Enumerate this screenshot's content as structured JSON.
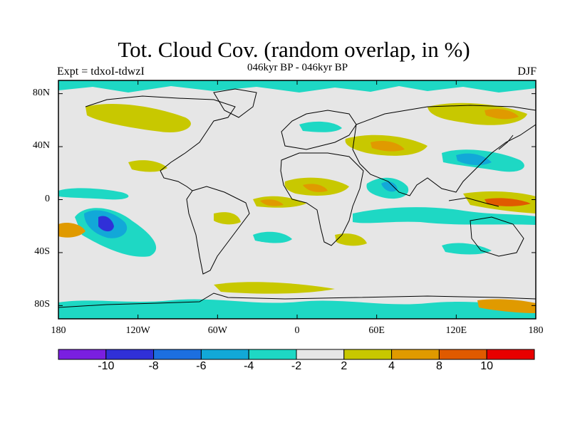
{
  "title": "Tot. Cloud Cov. (random overlap, in %)",
  "subtitle": "046kyr BP - 046kyr BP",
  "experiment": "Expt = tdxoI-tdwzI",
  "season": "DJF",
  "axes": {
    "lat_labels": [
      "80N",
      "40N",
      "0",
      "40S",
      "80S"
    ],
    "lat_values": [
      80,
      40,
      0,
      -40,
      -80
    ],
    "lon_labels": [
      "180",
      "120W",
      "60W",
      "0",
      "60E",
      "120E",
      "180"
    ],
    "lon_values": [
      -180,
      -120,
      -60,
      0,
      60,
      120,
      180
    ],
    "lat_range": [
      -90,
      90
    ],
    "lon_range": [
      -180,
      180
    ]
  },
  "colorbar": {
    "labels": [
      "-10",
      "-8",
      "-6",
      "-4",
      "-2",
      "2",
      "4",
      "8",
      "10"
    ],
    "colors": [
      "#7a1fe0",
      "#3030d8",
      "#1c6fe0",
      "#12a8d8",
      "#1ed8c4",
      "#e6e6e6",
      "#c8c800",
      "#e09a00",
      "#e05a00",
      "#e80000"
    ]
  },
  "colors": {
    "background": "#e6e6e6",
    "coastline": "#000000"
  }
}
